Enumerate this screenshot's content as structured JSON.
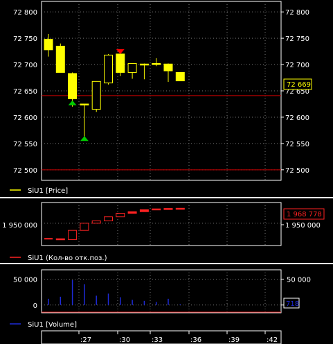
{
  "price_panel": {
    "y_ticks": [
      "72 800",
      "72 750",
      "72 700",
      "72 650",
      "72 600",
      "72 550",
      "72 500"
    ],
    "y_values": [
      72800,
      72750,
      72700,
      72650,
      72600,
      72550,
      72500
    ],
    "last_price_badge": "72 669",
    "legend": "SiU1 [Price]",
    "colors": {
      "candle": "#ffff00",
      "hline": "#cc0000",
      "buy_marker": "#00cc00",
      "sell_marker": "#ff0000"
    }
  },
  "oi_panel": {
    "y_tick": "1 950 000",
    "badge": "1 968 778",
    "legend": "SiU1 (Кол-во отк.поз.)",
    "colors": {
      "series": "#ff2222"
    }
  },
  "volume_panel": {
    "y_ticks": [
      "50 000",
      "0"
    ],
    "badge": "718",
    "legend": "SiU1 [Volume]",
    "colors": {
      "bars": "#1e2ad8"
    }
  },
  "time_axis": {
    "labels": [
      ":27",
      ":30",
      ":33",
      ":36",
      ":39",
      ":42"
    ]
  },
  "chart_data": [
    {
      "type": "candlestick",
      "title": "",
      "series_name": "SiU1 [Price]",
      "ylim": [
        72480,
        72820
      ],
      "candles": [
        {
          "o": 72748,
          "h": 72758,
          "l": 72715,
          "c": 72728
        },
        {
          "o": 72735,
          "h": 72740,
          "l": 72688,
          "c": 72685
        },
        {
          "o": 72683,
          "h": 72685,
          "l": 72620,
          "c": 72635
        },
        {
          "o": 72625,
          "h": 72625,
          "l": 72560,
          "c": 72625
        },
        {
          "o": 72615,
          "h": 72668,
          "l": 72610,
          "c": 72668
        },
        {
          "o": 72665,
          "h": 72720,
          "l": 72662,
          "c": 72718
        },
        {
          "o": 72720,
          "h": 72720,
          "l": 72678,
          "c": 72685
        },
        {
          "o": 72685,
          "h": 72702,
          "l": 72673,
          "c": 72702
        },
        {
          "o": 72701,
          "h": 72702,
          "l": 72672,
          "c": 72701
        },
        {
          "o": 72702,
          "h": 72712,
          "l": 72697,
          "c": 72702
        },
        {
          "o": 72701,
          "h": 72702,
          "l": 72667,
          "c": 72688
        },
        {
          "o": 72685,
          "h": 72685,
          "l": 72669,
          "c": 72669
        }
      ],
      "hlines": [
        72641,
        72500
      ],
      "markers": [
        {
          "index": 2,
          "type": "buy",
          "price": 72628
        },
        {
          "index": 3,
          "type": "buy",
          "price": 72560
        },
        {
          "index": 6,
          "type": "sell",
          "price": 72724
        }
      ]
    },
    {
      "type": "line",
      "series_name": "SiU1 (Кол-во отк.поз.)",
      "values": [
        1930500,
        1929500,
        1941000,
        1950000,
        1953000,
        1958000,
        1962500,
        1964500,
        1967000,
        1968000,
        1968500,
        1968778
      ]
    },
    {
      "type": "bar",
      "series_name": "SiU1 [Volume]",
      "ylim": [
        -15000,
        68000
      ],
      "values": [
        12000,
        16000,
        48000,
        40000,
        18000,
        22000,
        15000,
        10000,
        8000,
        6000,
        12000,
        718
      ]
    }
  ]
}
